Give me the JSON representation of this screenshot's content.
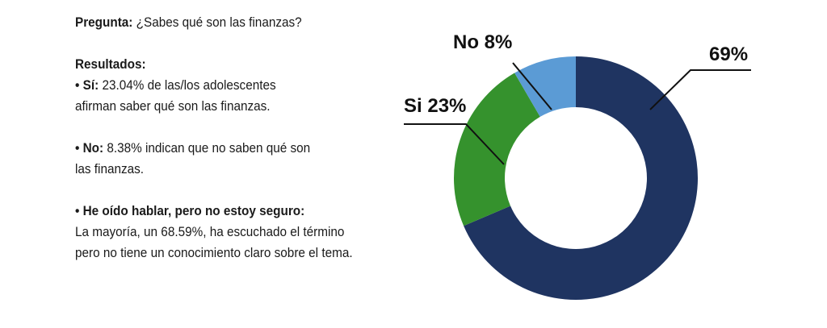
{
  "question": {
    "label": "Pregunta:",
    "text": "¿Sabes qué son las finanzas?"
  },
  "results": {
    "heading": "Resultados:",
    "items": [
      {
        "bullet": "•",
        "label": "Sí:",
        "line1": "23.04% de las/los adolescentes",
        "line2": "afirman saber qué son las finanzas."
      },
      {
        "bullet": "•",
        "label": "No:",
        "line1": "8.38% indican que no saben qué son",
        "line2": "las finanzas."
      },
      {
        "bullet": "•",
        "label": "He oído hablar, pero no estoy seguro:",
        "line1": "La mayoría, un 68.59%, ha escuchado el término",
        "line2": "pero no tiene un conocimiento claro sobre el tema."
      }
    ]
  },
  "chart_data": {
    "type": "pie",
    "donut": true,
    "slices": [
      {
        "label": "69%",
        "value": 68.59,
        "color": "#1f3461"
      },
      {
        "label": "Si 23%",
        "value": 23.04,
        "color": "#35922d"
      },
      {
        "label": "No 8%",
        "value": 8.38,
        "color": "#5b9bd5"
      }
    ]
  }
}
